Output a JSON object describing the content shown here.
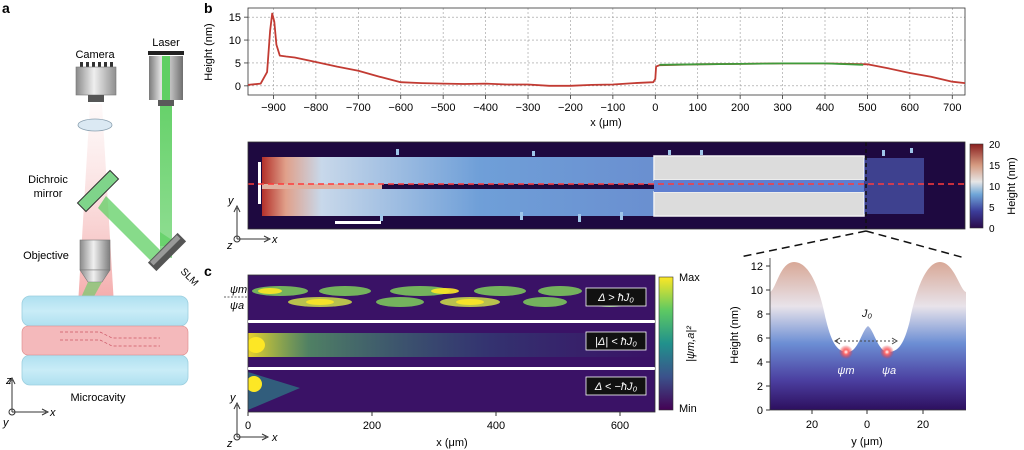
{
  "panels": {
    "a": "a",
    "b": "b",
    "c": "c"
  },
  "setup": {
    "camera": "Camera",
    "laser": "Laser",
    "dichroic": [
      "Dichroic",
      "mirror"
    ],
    "objective": "Objective",
    "slm": "SLM",
    "microcavity": "Microcavity",
    "axes": {
      "z": "z",
      "x": "x",
      "y": "y"
    }
  },
  "colors": {
    "profile": "#c23b33",
    "plateau": "#3f9b3a",
    "green_beam": "#5fcf63",
    "red_beam": "#f0b0b0",
    "cavity": "#b8e4f2",
    "sample": "#f4b9bb"
  },
  "heatmap": {
    "colorbar_label": "Height (nm)",
    "colorbar_ticks": [
      "0",
      "5",
      "10",
      "15",
      "20"
    ],
    "axes": {
      "z": "z",
      "y": "y",
      "x": "x"
    }
  },
  "panel_c": {
    "psi_m": "ψm",
    "psi_a": "ψa",
    "regimes": [
      "Δ > ħJ₀",
      "|Δ| < ħJ₀",
      "Δ < −ħJ₀"
    ],
    "colorbar_max": "Max",
    "colorbar_min": "Min",
    "colorbar_label": "|ψm,a|²",
    "x_ticks": [
      "0",
      "200",
      "400",
      "600"
    ],
    "xlabel": "x (μm)",
    "axes": {
      "z": "z",
      "y": "y",
      "x": "x"
    }
  },
  "cross_section": {
    "ylabel": "Height (nm)",
    "y_ticks": [
      "0",
      "2",
      "4",
      "6",
      "8",
      "10",
      "12"
    ],
    "x_ticks": [
      "20",
      "0",
      "20"
    ],
    "xlabel": "y (μm)",
    "coupling": "J₀",
    "psi_m": "ψm",
    "psi_a": "ψa"
  },
  "chart_data": {
    "type": "line",
    "xlabel": "x (μm)",
    "ylabel": "Height (nm)",
    "xlim": [
      -960,
      730
    ],
    "ylim": [
      -2,
      17
    ],
    "x_ticks": [
      -900,
      -800,
      -700,
      -600,
      -500,
      -400,
      -300,
      -200,
      -100,
      0,
      100,
      200,
      300,
      400,
      500,
      600,
      700
    ],
    "y_ticks": [
      0,
      5,
      10,
      15
    ],
    "grid": true,
    "series": [
      {
        "color": "#c23b33",
        "x": [
          -960,
          -930,
          -915,
          -908,
          -903,
          -898,
          -893,
          -885,
          -870,
          -850,
          -800,
          -750,
          -700,
          -650,
          -600,
          -550,
          -500,
          -450,
          -400,
          -350,
          -300,
          -250,
          -200,
          -150,
          -100,
          -50,
          -5,
          0,
          2,
          10,
          50,
          100,
          200,
          300,
          400,
          500,
          550,
          600,
          650,
          700,
          730
        ],
        "y": [
          0.2,
          0.5,
          3,
          12,
          15.8,
          14,
          9,
          6.6,
          6.4,
          6.2,
          5.2,
          4.2,
          3.3,
          2.0,
          0.8,
          0.6,
          0.5,
          0.4,
          0.5,
          0.3,
          0.3,
          0.0,
          0.0,
          0.2,
          0.3,
          0.6,
          0.8,
          1.5,
          4.2,
          4.5,
          4.6,
          4.7,
          4.8,
          4.9,
          4.9,
          4.7,
          3.8,
          2.8,
          2.0,
          0.9,
          0.6
        ]
      },
      {
        "color": "#3f9b3a",
        "x": [
          10,
          100,
          200,
          300,
          400,
          490
        ],
        "y": [
          4.6,
          4.7,
          4.8,
          4.9,
          4.9,
          4.6
        ]
      }
    ]
  }
}
